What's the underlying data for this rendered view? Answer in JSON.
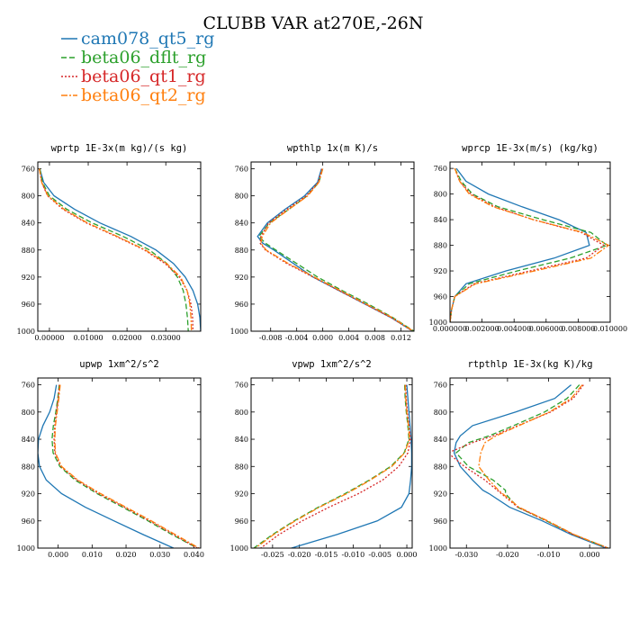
{
  "title": "CLUBB VAR at270E,-26N",
  "colors": {
    "cam078_qt5_rg": "#1f77b4",
    "beta06_dflt_rg": "#2ca02c",
    "beta06_qt1_rg": "#d62728",
    "beta06_qt2_rg": "#ff7f0e"
  },
  "legend": [
    {
      "name": "cam078_qt5_rg",
      "color": "#1f77b4",
      "dash": "solid"
    },
    {
      "name": "beta06_dflt_rg",
      "color": "#2ca02c",
      "dash": "dashed"
    },
    {
      "name": "beta06_qt1_rg",
      "color": "#d62728",
      "dash": "dotted"
    },
    {
      "name": "beta06_qt2_rg",
      "color": "#ff7f0e",
      "dash": "dashdot"
    }
  ],
  "chart_data": [
    {
      "type": "line",
      "title": "wprtp  1E-3x(m kg)/(s kg)",
      "xlim": [
        -0.003,
        0.039
      ],
      "ylim": [
        1000,
        750
      ],
      "xticks": [
        0.0,
        0.01,
        0.02,
        0.03
      ],
      "xtick_labels": [
        "0.00000",
        "0.01000",
        "0.02000",
        "0.03000"
      ],
      "yticks": [
        760,
        800,
        840,
        880,
        920,
        960,
        1000
      ],
      "ytick_labels": [
        "760",
        "800",
        "840",
        "880",
        "920",
        "960",
        "1000"
      ],
      "y": [
        760,
        780,
        800,
        820,
        840,
        860,
        880,
        900,
        920,
        940,
        960,
        980,
        1000
      ],
      "series": [
        {
          "name": "cam078_qt5_rg",
          "x": [
            -0.0025,
            -0.0015,
            0.0012,
            0.0065,
            0.013,
            0.021,
            0.0275,
            0.032,
            0.035,
            0.037,
            0.0382,
            0.0388,
            0.039
          ]
        },
        {
          "name": "beta06_dflt_rg",
          "x": [
            -0.0025,
            -0.0018,
            0.0,
            0.0045,
            0.011,
            0.019,
            0.0258,
            0.0303,
            0.033,
            0.0345,
            0.0352,
            0.0356,
            0.0358
          ]
        },
        {
          "name": "beta06_qt1_rg",
          "x": [
            -0.0026,
            -0.002,
            -0.0005,
            0.0035,
            0.0095,
            0.0172,
            0.0245,
            0.0298,
            0.0335,
            0.0355,
            0.0365,
            0.0369,
            0.037
          ]
        },
        {
          "name": "beta06_qt2_rg",
          "x": [
            -0.0026,
            -0.002,
            -0.0004,
            0.0038,
            0.0098,
            0.0175,
            0.0248,
            0.0302,
            0.0338,
            0.0355,
            0.0362,
            0.0365,
            0.0366
          ]
        }
      ]
    },
    {
      "type": "line",
      "title": "wpthlp  1x(m K)/s",
      "xlim": [
        -0.011,
        0.014
      ],
      "ylim": [
        1000,
        750
      ],
      "xticks": [
        -0.008,
        -0.004,
        0.0,
        0.004,
        0.008,
        0.012
      ],
      "xtick_labels": [
        "-0.008",
        "-0.004",
        "0.000",
        "0.004",
        "0.008",
        "0.012"
      ],
      "yticks": [
        760,
        800,
        840,
        880,
        920,
        960,
        1000
      ],
      "ytick_labels": [
        "760",
        "800",
        "840",
        "880",
        "920",
        "960",
        "1000"
      ],
      "y": [
        760,
        780,
        800,
        820,
        840,
        860,
        870,
        880,
        900,
        920,
        940,
        960,
        980,
        1000
      ],
      "series": [
        {
          "name": "cam078_qt5_rg",
          "x": [
            -0.0002,
            -0.0008,
            -0.0028,
            -0.0058,
            -0.0085,
            -0.01,
            -0.0092,
            -0.0075,
            -0.0045,
            -0.0015,
            0.0025,
            0.0065,
            0.0105,
            0.0138
          ]
        },
        {
          "name": "beta06_dflt_rg",
          "x": [
            0.0,
            -0.0006,
            -0.0024,
            -0.0052,
            -0.0082,
            -0.0098,
            -0.0088,
            -0.0072,
            -0.004,
            -0.0008,
            0.003,
            0.007,
            0.0108,
            0.014
          ]
        },
        {
          "name": "beta06_qt1_rg",
          "x": [
            -0.0001,
            -0.0007,
            -0.0025,
            -0.0055,
            -0.0083,
            -0.0095,
            -0.0096,
            -0.0088,
            -0.0055,
            -0.0015,
            0.0025,
            0.0065,
            0.0105,
            0.0138
          ]
        },
        {
          "name": "beta06_qt2_rg",
          "x": [
            0.0,
            -0.0006,
            -0.0023,
            -0.0052,
            -0.008,
            -0.0093,
            -0.0095,
            -0.0087,
            -0.0053,
            -0.0013,
            0.0027,
            0.0067,
            0.0107,
            0.0139
          ]
        }
      ]
    },
    {
      "type": "line",
      "title": "wprcp  1E-3x(m/s) (kg/kg)",
      "xlim": [
        0.0,
        0.01
      ],
      "ylim": [
        1000,
        750
      ],
      "xticks": [
        0.0,
        0.002,
        0.004,
        0.006,
        0.008,
        0.01
      ],
      "xtick_labels": [
        "0.000000",
        "0.002000",
        "0.004000",
        "0.006000",
        "0.008000",
        "0.010000"
      ],
      "yticks": [
        760,
        800,
        840,
        880,
        920,
        960,
        1000
      ],
      "ytick_labels": [
        "760",
        "800",
        "840",
        "880",
        "920",
        "960",
        "1000"
      ],
      "y": [
        760,
        780,
        800,
        820,
        840,
        860,
        880,
        900,
        920,
        940,
        960,
        980,
        1000
      ],
      "series": [
        {
          "name": "cam078_qt5_rg",
          "x": [
            0.0004,
            0.001,
            0.0024,
            0.0045,
            0.0068,
            0.0085,
            0.0087,
            0.0065,
            0.0035,
            0.001,
            0.0003,
            0.0001,
            0.0
          ]
        },
        {
          "name": "beta06_dflt_rg",
          "x": [
            0.0003,
            0.0007,
            0.0014,
            0.003,
            0.0058,
            0.0088,
            0.0098,
            0.0075,
            0.0042,
            0.0012,
            0.0003,
            0.0001,
            0.0
          ]
        },
        {
          "name": "beta06_qt1_rg",
          "x": [
            0.0003,
            0.0006,
            0.0013,
            0.0028,
            0.0052,
            0.0082,
            0.0096,
            0.0085,
            0.005,
            0.0015,
            0.0003,
            0.0001,
            0.0
          ]
        },
        {
          "name": "beta06_qt2_rg",
          "x": [
            0.0003,
            0.0006,
            0.0012,
            0.0027,
            0.0052,
            0.0083,
            0.0099,
            0.0088,
            0.0053,
            0.0016,
            0.0003,
            0.0001,
            0.0
          ]
        }
      ]
    },
    {
      "type": "line",
      "title": "upwp  1xm^2/s^2",
      "xlim": [
        -0.006,
        0.042
      ],
      "ylim": [
        1000,
        750
      ],
      "xticks": [
        0.0,
        0.01,
        0.02,
        0.03,
        0.04
      ],
      "xtick_labels": [
        "0.000",
        "0.010",
        "0.020",
        "0.030",
        "0.040"
      ],
      "yticks": [
        760,
        800,
        840,
        880,
        920,
        960,
        1000
      ],
      "ytick_labels": [
        "760",
        "800",
        "840",
        "880",
        "920",
        "960",
        "1000"
      ],
      "y": [
        760,
        780,
        800,
        820,
        840,
        860,
        880,
        900,
        920,
        940,
        960,
        980,
        1000
      ],
      "series": [
        {
          "name": "cam078_qt5_rg",
          "x": [
            -0.0005,
            -0.0012,
            -0.0025,
            -0.0045,
            -0.0058,
            -0.006,
            -0.0055,
            -0.0035,
            0.001,
            0.008,
            0.0165,
            0.025,
            0.034
          ]
        },
        {
          "name": "beta06_dflt_rg",
          "x": [
            0.0003,
            -0.0001,
            -0.0007,
            -0.0014,
            -0.0018,
            -0.0015,
            0.0005,
            0.005,
            0.0115,
            0.019,
            0.0265,
            0.0335,
            0.041
          ]
        },
        {
          "name": "beta06_qt1_rg",
          "x": [
            0.0004,
            0.0,
            -0.0005,
            -0.001,
            -0.0012,
            -0.001,
            0.0008,
            0.0055,
            0.012,
            0.0195,
            0.027,
            0.034,
            0.041
          ]
        },
        {
          "name": "beta06_qt2_rg",
          "x": [
            0.0006,
            0.0002,
            -0.0003,
            -0.0008,
            -0.001,
            -0.0008,
            0.001,
            0.0058,
            0.0125,
            0.02,
            0.0275,
            0.0345,
            0.0415
          ]
        }
      ]
    },
    {
      "type": "line",
      "title": "vpwp  1xm^2/s^2",
      "xlim": [
        -0.029,
        0.001
      ],
      "ylim": [
        1000,
        750
      ],
      "xticks": [
        -0.025,
        -0.02,
        -0.015,
        -0.01,
        -0.005,
        0.0
      ],
      "xtick_labels": [
        "-0.025",
        "-0.020",
        "-0.015",
        "-0.010",
        "-0.005",
        "0.000"
      ],
      "yticks": [
        760,
        800,
        840,
        880,
        920,
        960,
        1000
      ],
      "ytick_labels": [
        "760",
        "800",
        "840",
        "880",
        "920",
        "960",
        "1000"
      ],
      "y": [
        760,
        780,
        800,
        820,
        840,
        860,
        880,
        900,
        920,
        940,
        960,
        980,
        1000
      ],
      "series": [
        {
          "name": "cam078_qt5_rg",
          "x": [
            0.0,
            0.0002,
            0.0004,
            0.0006,
            0.0008,
            0.0009,
            0.0009,
            0.0007,
            0.0004,
            -0.001,
            -0.0055,
            -0.013,
            -0.0215
          ]
        },
        {
          "name": "beta06_dflt_rg",
          "x": [
            -0.0004,
            -0.0003,
            -0.0001,
            0.0002,
            0.0004,
            -0.0005,
            -0.003,
            -0.007,
            -0.0115,
            -0.0165,
            -0.021,
            -0.025,
            -0.0285
          ]
        },
        {
          "name": "beta06_qt1_rg",
          "x": [
            -0.0002,
            -0.0001,
            0.0001,
            0.0004,
            0.0007,
            0.0002,
            -0.0015,
            -0.0045,
            -0.009,
            -0.0145,
            -0.0195,
            -0.0238,
            -0.0272
          ]
        },
        {
          "name": "beta06_qt2_rg",
          "x": [
            -0.0003,
            -0.0002,
            0.0,
            0.0003,
            0.0005,
            -0.0004,
            -0.0028,
            -0.0068,
            -0.0112,
            -0.0163,
            -0.0208,
            -0.0248,
            -0.0282
          ]
        }
      ]
    },
    {
      "type": "line",
      "title": "rtpthlp  1E-3x(kg K)/kg",
      "xlim": [
        -0.034,
        0.005
      ],
      "ylim": [
        1000,
        750
      ],
      "xticks": [
        -0.03,
        -0.02,
        -0.01,
        0.0
      ],
      "xtick_labels": [
        "-0.030",
        "-0.020",
        "-0.010",
        "0.000"
      ],
      "yticks": [
        760,
        800,
        840,
        880,
        920,
        960,
        1000
      ],
      "ytick_labels": [
        "760",
        "800",
        "840",
        "880",
        "920",
        "960",
        "1000"
      ],
      "y": [
        760,
        780,
        800,
        820,
        835,
        845,
        860,
        880,
        900,
        915,
        920,
        940,
        960,
        980,
        1000
      ],
      "series": [
        {
          "name": "cam078_qt5_rg",
          "x": [
            -0.0045,
            -0.0085,
            -0.018,
            -0.0285,
            -0.0315,
            -0.0325,
            -0.033,
            -0.0315,
            -0.0285,
            -0.026,
            -0.0245,
            -0.0195,
            -0.0115,
            -0.0045,
            0.004
          ]
        },
        {
          "name": "beta06_dflt_rg",
          "x": [
            -0.0025,
            -0.0055,
            -0.011,
            -0.0185,
            -0.0245,
            -0.0295,
            -0.0325,
            -0.0295,
            -0.0235,
            -0.0205,
            -0.0205,
            -0.0175,
            -0.0105,
            -0.004,
            0.0045
          ]
        },
        {
          "name": "beta06_qt1_rg",
          "x": [
            -0.0015,
            -0.004,
            -0.0095,
            -0.0175,
            -0.0235,
            -0.0285,
            -0.0345,
            -0.0305,
            -0.0255,
            -0.0225,
            -0.0215,
            -0.0175,
            -0.0105,
            -0.004,
            0.0045
          ]
        },
        {
          "name": "beta06_qt2_rg",
          "x": [
            -0.0018,
            -0.0045,
            -0.0098,
            -0.0172,
            -0.0228,
            -0.0255,
            -0.0265,
            -0.027,
            -0.0245,
            -0.0222,
            -0.0212,
            -0.0172,
            -0.0102,
            -0.0038,
            0.0045
          ]
        }
      ]
    }
  ]
}
